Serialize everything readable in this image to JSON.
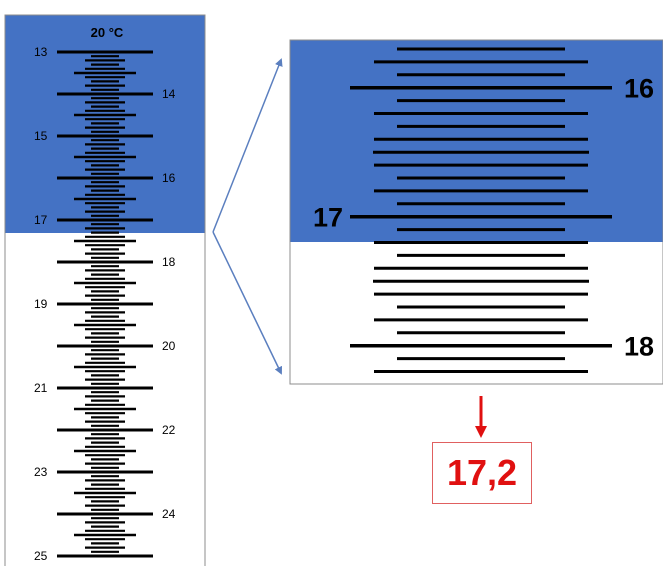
{
  "left_scale": {
    "header": "20 °C",
    "labels_left": [
      "13",
      "15",
      "17",
      "19",
      "21",
      "23",
      "25"
    ],
    "labels_right": [
      "14",
      "16",
      "18",
      "20",
      "22",
      "24"
    ]
  },
  "zoom": {
    "labels_left": [
      "17"
    ],
    "labels_right": [
      "16",
      "18"
    ]
  },
  "result": {
    "value": "17,2"
  },
  "colors": {
    "blue_fill": "#4472c4",
    "arrow_blue": "#5b7fbf",
    "result_red": "#e01010",
    "tick_black": "#000000"
  }
}
